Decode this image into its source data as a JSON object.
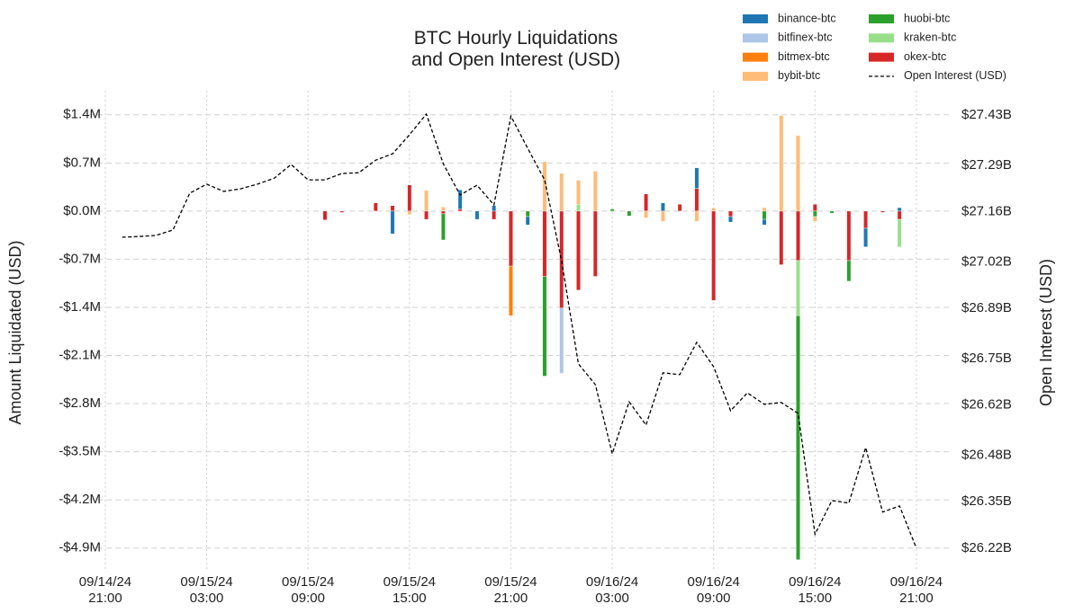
{
  "chart_data": {
    "type": "bar",
    "title": "BTC Hourly Liquidations\nand Open Interest (USD)",
    "ylabel": "Amount Liquidated (USD)",
    "y2label": "Open Interest (USD)",
    "grid": true,
    "legend": "upper right",
    "x": [
      "09/14/24 22:00",
      "09/14/24 23:00",
      "09/15/24 00:00",
      "09/15/24 01:00",
      "09/15/24 02:00",
      "09/15/24 03:00",
      "09/15/24 04:00",
      "09/15/24 05:00",
      "09/15/24 06:00",
      "09/15/24 07:00",
      "09/15/24 08:00",
      "09/15/24 09:00",
      "09/15/24 10:00",
      "09/15/24 11:00",
      "09/15/24 12:00",
      "09/15/24 13:00",
      "09/15/24 14:00",
      "09/15/24 15:00",
      "09/15/24 16:00",
      "09/15/24 17:00",
      "09/15/24 18:00",
      "09/15/24 19:00",
      "09/15/24 20:00",
      "09/15/24 21:00",
      "09/15/24 22:00",
      "09/15/24 23:00",
      "09/16/24 00:00",
      "09/16/24 01:00",
      "09/16/24 02:00",
      "09/16/24 03:00",
      "09/16/24 04:00",
      "09/16/24 05:00",
      "09/16/24 06:00",
      "09/16/24 07:00",
      "09/16/24 08:00",
      "09/16/24 09:00",
      "09/16/24 10:00",
      "09/16/24 11:00",
      "09/16/24 12:00",
      "09/16/24 13:00",
      "09/16/24 14:00",
      "09/16/24 15:00",
      "09/16/24 16:00",
      "09/16/24 17:00",
      "09/16/24 18:00",
      "09/16/24 19:00",
      "09/16/24 20:00",
      "09/16/24 21:00"
    ],
    "xlim": [
      "09/14/24 20:00",
      "09/16/24 22:00"
    ],
    "xticks": [
      "09/14/24\n21:00",
      "09/15/24\n03:00",
      "09/15/24\n09:00",
      "09/15/24\n15:00",
      "09/15/24\n21:00",
      "09/16/24\n03:00",
      "09/16/24\n09:00",
      "09/16/24\n15:00",
      "09/16/24\n21:00"
    ],
    "ylim": [
      -5100000,
      1750000
    ],
    "yticks": [
      {
        "value": 1400000,
        "label": "$1.4M"
      },
      {
        "value": 700000,
        "label": "$0.7M"
      },
      {
        "value": 0,
        "label": "$0.0M"
      },
      {
        "value": -700000,
        "label": "-$0.7M"
      },
      {
        "value": -1400000,
        "label": "-$1.4M"
      },
      {
        "value": -2100000,
        "label": "-$2.1M"
      },
      {
        "value": -2800000,
        "label": "-$2.8M"
      },
      {
        "value": -3500000,
        "label": "-$3.5M"
      },
      {
        "value": -4200000,
        "label": "-$4.2M"
      },
      {
        "value": -4900000,
        "label": "-$4.9M"
      }
    ],
    "y2lim": [
      26182000000,
      27498000000
    ],
    "y2ticks": [
      {
        "value": 27430000000,
        "label": "$27.43B"
      },
      {
        "value": 27290000000,
        "label": "$27.29B"
      },
      {
        "value": 27160000000,
        "label": "$27.16B"
      },
      {
        "value": 27020000000,
        "label": "$27.02B"
      },
      {
        "value": 26890000000,
        "label": "$26.89B"
      },
      {
        "value": 26750000000,
        "label": "$26.75B"
      },
      {
        "value": 26620000000,
        "label": "$26.62B"
      },
      {
        "value": 26480000000,
        "label": "$26.48B"
      },
      {
        "value": 26350000000,
        "label": "$26.35B"
      },
      {
        "value": 26220000000,
        "label": "$26.22B"
      }
    ],
    "series": [
      {
        "name": "binance-btc",
        "color": "#1f77b4",
        "values": [
          null,
          null,
          null,
          null,
          null,
          null,
          null,
          null,
          null,
          null,
          null,
          null,
          null,
          null,
          null,
          null,
          -330000,
          null,
          null,
          null,
          280000,
          -120000,
          80000,
          null,
          -120000,
          null,
          null,
          null,
          null,
          null,
          null,
          null,
          120000,
          null,
          300000,
          null,
          -80000,
          null,
          -80000,
          null,
          null,
          null,
          null,
          null,
          -270000,
          null,
          50000,
          null
        ]
      },
      {
        "name": "bitfinex-btc",
        "color": "#aec7e8",
        "values": [
          null,
          null,
          null,
          null,
          null,
          null,
          null,
          null,
          null,
          null,
          null,
          null,
          null,
          null,
          null,
          null,
          null,
          null,
          null,
          null,
          null,
          null,
          null,
          null,
          null,
          null,
          -950000,
          null,
          null,
          null,
          null,
          null,
          null,
          null,
          null,
          null,
          null,
          null,
          null,
          null,
          null,
          null,
          null,
          null,
          null,
          null,
          null,
          null
        ]
      },
      {
        "name": "bitmex-btc",
        "color": "#ff7f0e",
        "values": [
          null,
          null,
          null,
          null,
          null,
          null,
          null,
          null,
          null,
          null,
          null,
          null,
          null,
          null,
          null,
          null,
          null,
          null,
          null,
          null,
          null,
          null,
          null,
          -720000,
          null,
          null,
          null,
          null,
          null,
          null,
          null,
          null,
          null,
          null,
          null,
          null,
          null,
          null,
          null,
          null,
          null,
          null,
          null,
          null,
          null,
          null,
          null,
          null
        ]
      },
      {
        "name": "bybit-btc",
        "color": "#ffbb78",
        "values": [
          null,
          null,
          null,
          null,
          null,
          null,
          null,
          null,
          null,
          null,
          null,
          null,
          null,
          null,
          null,
          null,
          null,
          -50000,
          300000,
          60000,
          null,
          null,
          null,
          null,
          null,
          720000,
          550000,
          350000,
          580000,
          null,
          null,
          -100000,
          -150000,
          null,
          -150000,
          50000,
          null,
          null,
          50000,
          1390000,
          1100000,
          -70000,
          null,
          null,
          null,
          null,
          null,
          null
        ]
      },
      {
        "name": "huobi-btc",
        "color": "#2ca02c",
        "values": [
          null,
          null,
          null,
          null,
          null,
          null,
          null,
          null,
          null,
          null,
          null,
          null,
          null,
          null,
          null,
          null,
          null,
          null,
          null,
          -380000,
          null,
          null,
          null,
          null,
          -80000,
          -1450000,
          null,
          null,
          null,
          30000,
          -70000,
          null,
          null,
          null,
          null,
          null,
          null,
          null,
          -120000,
          null,
          -3550000,
          -80000,
          -30000,
          -300000,
          null,
          null,
          null,
          null
        ]
      },
      {
        "name": "kraken-btc",
        "color": "#98df8a",
        "values": [
          null,
          null,
          null,
          null,
          null,
          null,
          null,
          null,
          null,
          null,
          null,
          null,
          null,
          null,
          null,
          null,
          null,
          null,
          null,
          null,
          null,
          null,
          null,
          null,
          null,
          null,
          null,
          100000,
          null,
          null,
          null,
          null,
          null,
          null,
          null,
          null,
          null,
          null,
          null,
          null,
          -800000,
          null,
          null,
          null,
          null,
          null,
          -400000,
          null
        ]
      },
      {
        "name": "okex-btc",
        "color": "#d62728",
        "values": [
          null,
          null,
          null,
          null,
          null,
          null,
          null,
          null,
          null,
          null,
          null,
          null,
          -130000,
          -20000,
          null,
          120000,
          80000,
          380000,
          -120000,
          -40000,
          30000,
          null,
          -120000,
          -800000,
          null,
          -950000,
          -1410000,
          -1150000,
          -950000,
          null,
          null,
          250000,
          null,
          100000,
          330000,
          -1300000,
          -80000,
          null,
          null,
          -780000,
          -720000,
          100000,
          null,
          -720000,
          -250000,
          -20000,
          -120000,
          null
        ]
      },
      {
        "name": "Open Interest (USD)",
        "color": "#000000",
        "type": "line",
        "linestyle": "dashed",
        "axis": "y2",
        "values": [
          27089000000,
          27091000000,
          27094000000,
          27109000000,
          27212000000,
          27237000000,
          27217000000,
          27224000000,
          27237000000,
          27254000000,
          27292000000,
          27249000000,
          27249000000,
          27267000000,
          27269000000,
          27304000000,
          27322000000,
          27375000000,
          27433000000,
          27294000000,
          27207000000,
          27234000000,
          27179000000,
          27427000000,
          27337000000,
          27249000000,
          27023000000,
          26735000000,
          26677000000,
          26484000000,
          26629000000,
          26564000000,
          26710000000,
          26705000000,
          26795000000,
          26727000000,
          26604000000,
          26654000000,
          26622000000,
          26627000000,
          26597000000,
          26259000000,
          26353000000,
          26346000000,
          26501000000,
          26321000000,
          26338000000,
          26220000000
        ]
      }
    ]
  }
}
